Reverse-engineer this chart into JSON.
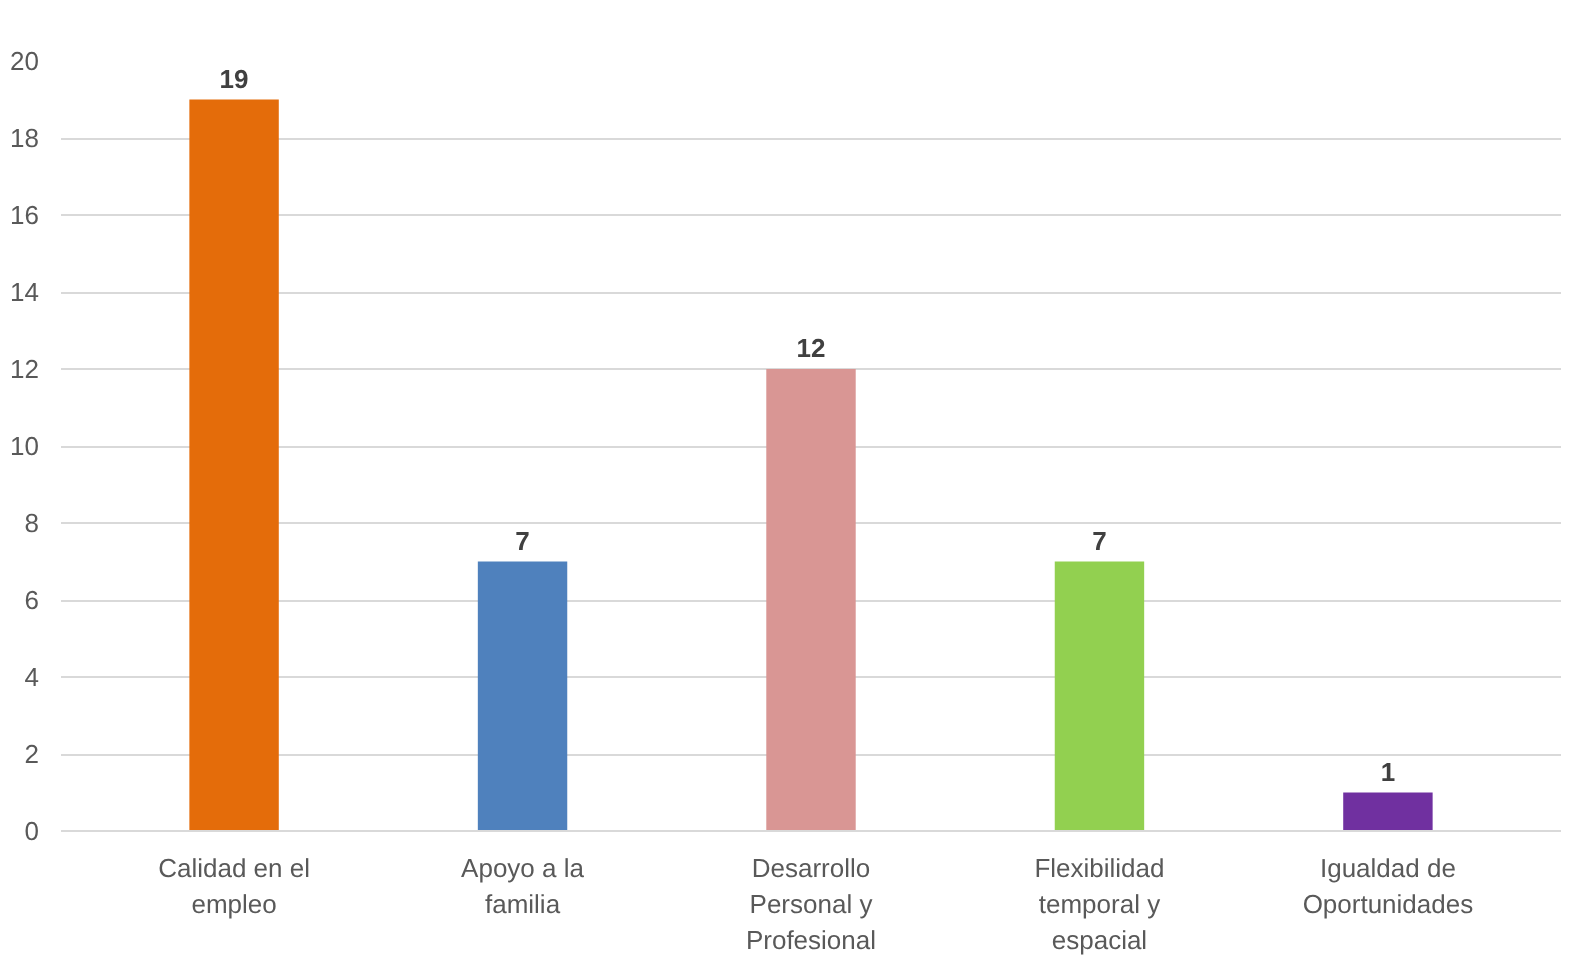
{
  "chart_data": {
    "type": "bar",
    "categories": [
      "Calidad en el empleo",
      "Apoyo a la familia",
      "Desarrollo Personal y Profesional",
      "Flexibilidad temporal y espacial",
      "Igualdad de Oportunidades"
    ],
    "values": [
      19,
      7,
      12,
      7,
      1
    ],
    "colors": [
      "#e46c0a",
      "#4f81bd",
      "#d99694",
      "#92d050",
      "#7030a0"
    ],
    "ylim": [
      0,
      20
    ],
    "yticks": [
      0,
      2,
      4,
      6,
      8,
      10,
      12,
      14,
      16,
      18,
      20
    ],
    "grid": "y",
    "data_labels": true
  }
}
